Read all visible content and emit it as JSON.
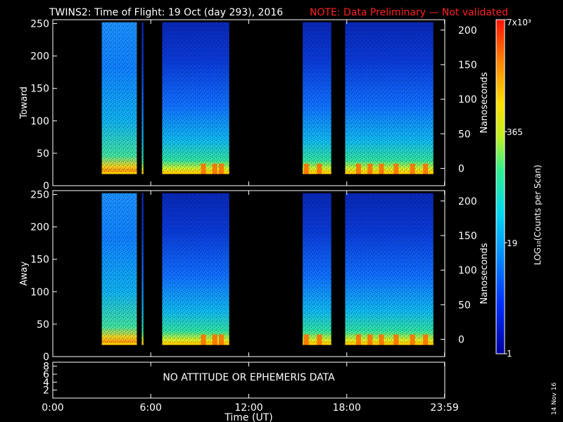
{
  "header": {
    "title": "TWINS2: Time of Flight: 19 Oct (day 293), 2016",
    "note": "NOTE: Data Preliminary — Not validated",
    "note_color": "#ff2020"
  },
  "chart_data": [
    {
      "type": "heatmap",
      "panel": "top",
      "ylabel": "Toward",
      "ylabel_right": "Nanoseconds",
      "ylim": [
        0,
        256
      ],
      "yticks": [
        "0",
        "50",
        "100",
        "150",
        "200",
        "250"
      ],
      "ylim_right": [
        -25,
        215
      ],
      "yticks_right": [
        "0",
        "50",
        "100",
        "150",
        "200"
      ],
      "data_intervals_ut": [
        [
          3.0,
          5.15
        ],
        [
          5.45,
          5.55
        ],
        [
          6.7,
          10.8
        ],
        [
          15.3,
          17.05
        ],
        [
          17.9,
          23.3
        ]
      ],
      "hot_features_ut": [
        9.2,
        9.9,
        10.3,
        15.5,
        16.3,
        18.7,
        19.4,
        20.1,
        21.0,
        22.0,
        22.8
      ]
    },
    {
      "type": "heatmap",
      "panel": "middle",
      "ylabel": "Away",
      "ylabel_right": "Nanoseconds",
      "ylim": [
        0,
        256
      ],
      "yticks": [
        "0",
        "50",
        "100",
        "150",
        "200",
        "250"
      ],
      "ylim_right": [
        -25,
        215
      ],
      "yticks_right": [
        "0",
        "50",
        "100",
        "150",
        "200"
      ],
      "data_intervals_ut": [
        [
          3.0,
          5.15
        ],
        [
          5.45,
          5.55
        ],
        [
          6.7,
          10.8
        ],
        [
          15.3,
          17.05
        ],
        [
          17.9,
          23.3
        ]
      ],
      "hot_features_ut": [
        9.2,
        9.9,
        10.3,
        15.5,
        16.3,
        18.7,
        19.4,
        20.1,
        21.0,
        22.0,
        22.8
      ]
    },
    {
      "type": "line",
      "panel": "bottom",
      "yticks": [
        "2",
        "4",
        "6",
        "8"
      ],
      "message": "NO ATTITUDE OR EPHEMERIS DATA"
    }
  ],
  "xaxis": {
    "label": "Time (UT)",
    "ticks": [
      {
        "v": 0,
        "label": "0:00"
      },
      {
        "v": 6,
        "label": "6:00"
      },
      {
        "v": 12,
        "label": "12:00"
      },
      {
        "v": 18,
        "label": "18:00"
      },
      {
        "v": 23.983,
        "label": "23:59"
      }
    ],
    "range": [
      0,
      24
    ]
  },
  "colorbar": {
    "label": "LOG₁₀(Counts per Scan)",
    "tick_labels": [
      "1",
      "19",
      "365",
      "7x10³"
    ],
    "log_values": [
      0,
      1.28,
      2.56,
      3.85
    ]
  },
  "stamp": "14 Nov 16"
}
